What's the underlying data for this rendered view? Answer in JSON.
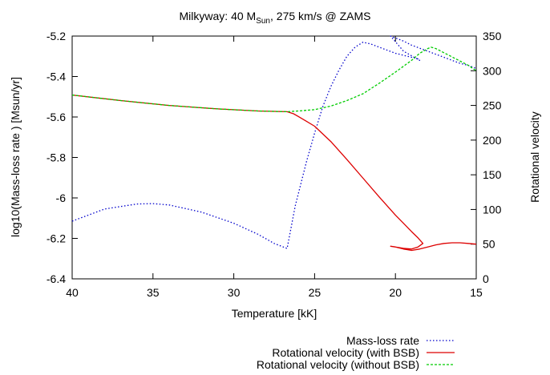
{
  "chart_data": {
    "type": "line",
    "title": "Milkyway: 40 M",
    "title_sub": "Sun",
    "title_tail": ", 275 km/s @ ZAMS",
    "xlabel": "Temperature [kK]",
    "ylabel": "log10(Mass-loss rate ) [Msun/yr]",
    "y2label": "Rotational velocity",
    "xlim": [
      40,
      15
    ],
    "ylim": [
      -6.4,
      -5.2
    ],
    "y2lim": [
      0,
      350
    ],
    "x_ticks": [
      40,
      35,
      30,
      25,
      20,
      15
    ],
    "y_ticks": [
      -6.4,
      -6.2,
      -6,
      -5.8,
      -5.6,
      -5.4,
      -5.2
    ],
    "y2_ticks": [
      0,
      50,
      100,
      150,
      200,
      250,
      300,
      350
    ],
    "x_tick_labels": [
      "40",
      "35",
      "30",
      "25",
      "20",
      "15"
    ],
    "y_tick_labels": [
      "-6.4",
      "-6.2",
      "-6",
      "-5.8",
      "-5.6",
      "-5.4",
      "-5.2"
    ],
    "y2_tick_labels": [
      "0",
      "50",
      "100",
      "150",
      "200",
      "250",
      "300",
      "350"
    ],
    "grid": false,
    "legend_position": "bottom-right, below plot",
    "series": [
      {
        "name": "Mass-loss rate",
        "axis": "left",
        "color": "#0000cc",
        "style": "dotted",
        "x": [
          40,
          38,
          36,
          35,
          34,
          32,
          30,
          28.5,
          27.5,
          26.7,
          26.7,
          26.2,
          25.5,
          25,
          24.5,
          24,
          23.5,
          23,
          22.5,
          22,
          21.5,
          21,
          20.5,
          20,
          19.5,
          19,
          18.5,
          18.5,
          19.5,
          20.3,
          19.5,
          19,
          18.5,
          18,
          17.5,
          17,
          16.5,
          16,
          15.5,
          15
        ],
        "y": [
          -6.115,
          -6.055,
          -6.03,
          -6.028,
          -6.035,
          -6.07,
          -6.125,
          -6.18,
          -6.225,
          -6.25,
          -6.25,
          -6.04,
          -5.82,
          -5.68,
          -5.55,
          -5.45,
          -5.37,
          -5.3,
          -5.255,
          -5.23,
          -5.24,
          -5.255,
          -5.27,
          -5.285,
          -5.295,
          -5.305,
          -5.315,
          -5.32,
          -5.275,
          -5.2,
          -5.225,
          -5.245,
          -5.26,
          -5.275,
          -5.29,
          -5.305,
          -5.32,
          -5.335,
          -5.345,
          -5.36
        ]
      },
      {
        "name": "Rotational velocity (with BSB)",
        "axis": "right",
        "color": "#dd0000",
        "style": "solid",
        "x": [
          40,
          37,
          34,
          31,
          28.5,
          26.7,
          26.3,
          26,
          25,
          24,
          23,
          22,
          21,
          20,
          19.5,
          19,
          18.6,
          18.3,
          18.6,
          19,
          19.5,
          20.3,
          20,
          19.5,
          19,
          18.5,
          18,
          17.5,
          17,
          16.5,
          16,
          15.5,
          15
        ],
        "y": [
          265,
          257,
          250,
          245,
          242,
          241,
          238,
          234,
          220,
          198,
          172,
          145,
          118,
          92,
          80,
          68,
          59,
          51,
          46,
          43,
          44,
          47,
          46,
          43,
          41,
          43,
          46,
          49,
          51,
          52,
          52,
          51,
          50
        ]
      },
      {
        "name": "Rotational velocity (without BSB)",
        "axis": "right",
        "color": "#00cc00",
        "style": "dashed",
        "x": [
          40,
          37,
          34,
          31,
          28.5,
          26.7,
          26,
          25,
          24,
          23,
          22,
          21,
          20,
          19,
          18.5,
          18,
          17.8,
          17.5,
          17,
          16.5,
          16,
          15.5,
          15
        ],
        "y": [
          265,
          257,
          250,
          245,
          242,
          241,
          242,
          244,
          249,
          257,
          267,
          282,
          298,
          315,
          325,
          332,
          334,
          332,
          326,
          320,
          314,
          308,
          300
        ]
      }
    ]
  }
}
